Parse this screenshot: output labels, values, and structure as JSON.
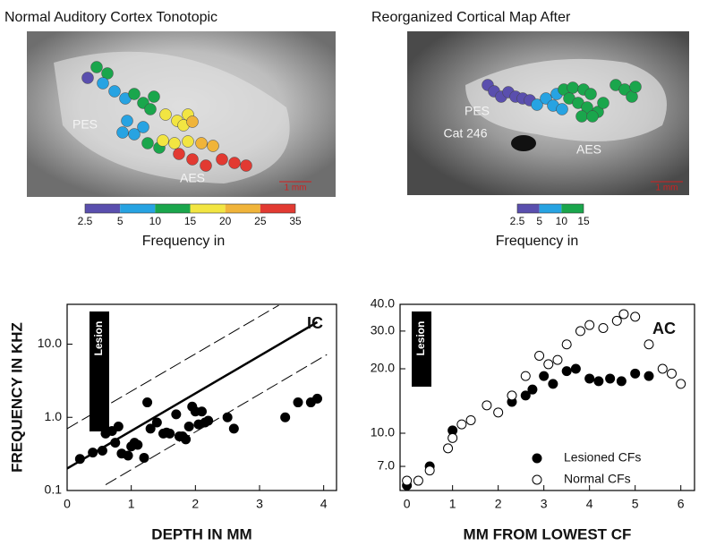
{
  "panels": [
    {
      "title": "Normal Auditory Cortex Tonotopic",
      "labels": [
        "PES",
        "AES"
      ],
      "scale": "1 mm",
      "colorbar": {
        "ticks": [
          2.5,
          5,
          10,
          15,
          20,
          25,
          35
        ],
        "colors": [
          "#5a4fae",
          "#27a3e2",
          "#1aa64c",
          "#f2e542",
          "#f0b43a",
          "#e23a32"
        ]
      },
      "colorbar_label": "Frequency in"
    },
    {
      "title": "Reorganized Cortical Map After",
      "labels": [
        "PES",
        "Cat 246",
        "AES"
      ],
      "scale": "1 mm",
      "colorbar": {
        "ticks": [
          2.5,
          5,
          10,
          15
        ],
        "colors": [
          "#5a4fae",
          "#27a3e2",
          "#1aa64c"
        ]
      },
      "colorbar_label": "Frequency in"
    }
  ],
  "chart_data": [
    {
      "type": "scatter",
      "xlabel": "DEPTH IN MM",
      "ylabel": "FREQUENCY IN KHZ",
      "log_y": true,
      "xlim": [
        0,
        4.2
      ],
      "ylim": [
        0.1,
        35
      ],
      "xticks": [
        0,
        1,
        2,
        3,
        4
      ],
      "yticks": [
        0.1,
        {
          "value": 1,
          "label": "1.0"
        },
        {
          "value": 10,
          "label": "10.0"
        }
      ],
      "annotations": [
        "IC",
        "Lesion"
      ],
      "series": [
        {
          "color": "#000000",
          "marker": "filled",
          "x": [
            0.2,
            0.4,
            0.55,
            0.6,
            0.7,
            0.75,
            0.8,
            0.85,
            0.95,
            1.0,
            1.05,
            1.1,
            1.2,
            1.25,
            1.3,
            1.4,
            1.5,
            1.55,
            1.6,
            1.7,
            1.75,
            1.8,
            1.85,
            1.9,
            1.95,
            2.0,
            2.05,
            2.1,
            2.15,
            2.2,
            2.5,
            2.6,
            3.4,
            3.6,
            3.8,
            3.9
          ],
          "values": [
            0.27,
            0.33,
            0.35,
            0.6,
            0.65,
            0.45,
            0.75,
            0.32,
            0.3,
            0.4,
            0.45,
            0.42,
            0.28,
            1.6,
            0.7,
            0.85,
            0.6,
            0.62,
            0.6,
            1.1,
            0.55,
            0.55,
            0.5,
            0.75,
            1.4,
            1.2,
            0.8,
            1.2,
            0.85,
            0.9,
            1.0,
            0.7,
            1.0,
            1.6,
            1.6,
            1.8
          ]
        },
        {
          "type": "line",
          "color": "#000000",
          "line_style": "solid",
          "x": [
            0,
            3.9
          ],
          "values": [
            0.2,
            20
          ]
        },
        {
          "type": "line",
          "color": "#000000",
          "line_style": "dashed",
          "x": [
            0,
            3.3
          ],
          "values": [
            0.7,
            34
          ]
        },
        {
          "type": "line",
          "color": "#000000",
          "line_style": "dashed",
          "x": [
            0.6,
            4.05
          ],
          "values": [
            0.12,
            7.2
          ]
        }
      ]
    },
    {
      "type": "scatter",
      "xlabel": "MM FROM LOWEST CF",
      "log_y": true,
      "xlim": [
        -0.15,
        6.3
      ],
      "ylim": [
        5.4,
        40
      ],
      "xticks": [
        0,
        1,
        2,
        3,
        4,
        5,
        6
      ],
      "yticks": [
        {
          "value": 7,
          "label": "7.0"
        },
        {
          "value": 10,
          "label": "10.0"
        },
        {
          "value": 20,
          "label": "20.0"
        },
        {
          "value": 30,
          "label": "30.0"
        },
        {
          "value": 40,
          "label": "40.0"
        }
      ],
      "annotations": [
        "AC",
        "Lesion"
      ],
      "legend": "lower right",
      "series": [
        {
          "name": "Lesioned CFs",
          "color": "#000000",
          "marker": "filled",
          "x": [
            0,
            0.5,
            1.0,
            2.3,
            2.6,
            2.75,
            3.0,
            3.2,
            3.5,
            3.7,
            4.0,
            4.2,
            4.45,
            4.7,
            5.0,
            5.3
          ],
          "values": [
            5.7,
            7.0,
            10.3,
            14,
            15,
            16,
            18.5,
            17,
            19.5,
            20,
            18,
            17.5,
            18,
            17.5,
            19,
            18.5
          ]
        },
        {
          "name": "Normal CFs",
          "color": "#000000",
          "marker": "open",
          "x": [
            0,
            0.25,
            0.5,
            0.9,
            1.0,
            1.2,
            1.4,
            1.75,
            2.0,
            2.3,
            2.6,
            2.9,
            3.1,
            3.3,
            3.5,
            3.8,
            4.0,
            4.3,
            4.6,
            4.75,
            5.0,
            5.3,
            5.6,
            5.8,
            6.0
          ],
          "values": [
            6,
            6,
            6.7,
            8.5,
            9.5,
            11,
            11.5,
            13.5,
            12.5,
            15,
            18.5,
            23,
            21,
            22,
            26,
            30,
            32,
            31,
            33.5,
            36,
            35,
            26,
            20,
            19,
            17
          ]
        }
      ]
    }
  ]
}
